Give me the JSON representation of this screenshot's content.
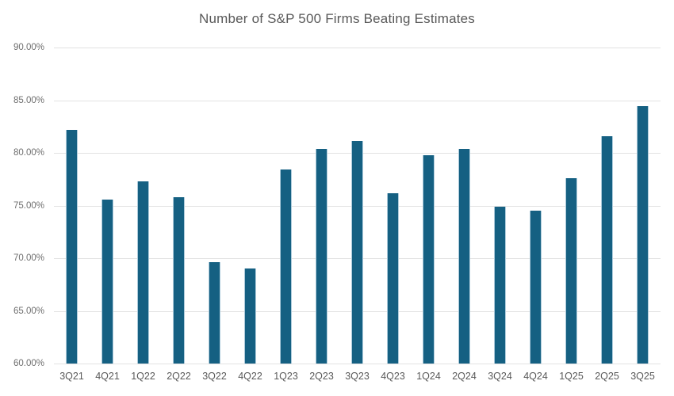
{
  "chart_data": {
    "type": "bar",
    "title": "Number of S&P 500 Firms Beating Estimates",
    "categories": [
      "3Q21",
      "4Q21",
      "1Q22",
      "2Q22",
      "3Q22",
      "4Q22",
      "1Q23",
      "2Q23",
      "3Q23",
      "4Q23",
      "1Q24",
      "2Q24",
      "3Q24",
      "4Q24",
      "1Q25",
      "2Q25",
      "3Q25"
    ],
    "values": [
      82.2,
      75.6,
      77.3,
      75.8,
      69.6,
      69.0,
      78.4,
      80.4,
      81.1,
      76.2,
      79.8,
      80.4,
      74.9,
      74.5,
      77.6,
      81.6,
      84.4
    ],
    "unit": "%",
    "xlabel": "",
    "ylabel": "",
    "ylim": [
      60,
      90
    ],
    "yticks": [
      {
        "value": 90,
        "label": "90.00%"
      },
      {
        "value": 85,
        "label": "85.00%"
      },
      {
        "value": 80,
        "label": "80.00%"
      },
      {
        "value": 75,
        "label": "75.00%"
      },
      {
        "value": 70,
        "label": "70.00%"
      },
      {
        "value": 65,
        "label": "65.00%"
      },
      {
        "value": 60,
        "label": "60.00%"
      }
    ],
    "grid": true,
    "legend_position": "none",
    "colors": {
      "bar_fill": "#156082",
      "gridline": "#e2e2e2",
      "title_text": "#595959",
      "axis_text": "#6e6e6e",
      "background": "#ffffff"
    }
  }
}
